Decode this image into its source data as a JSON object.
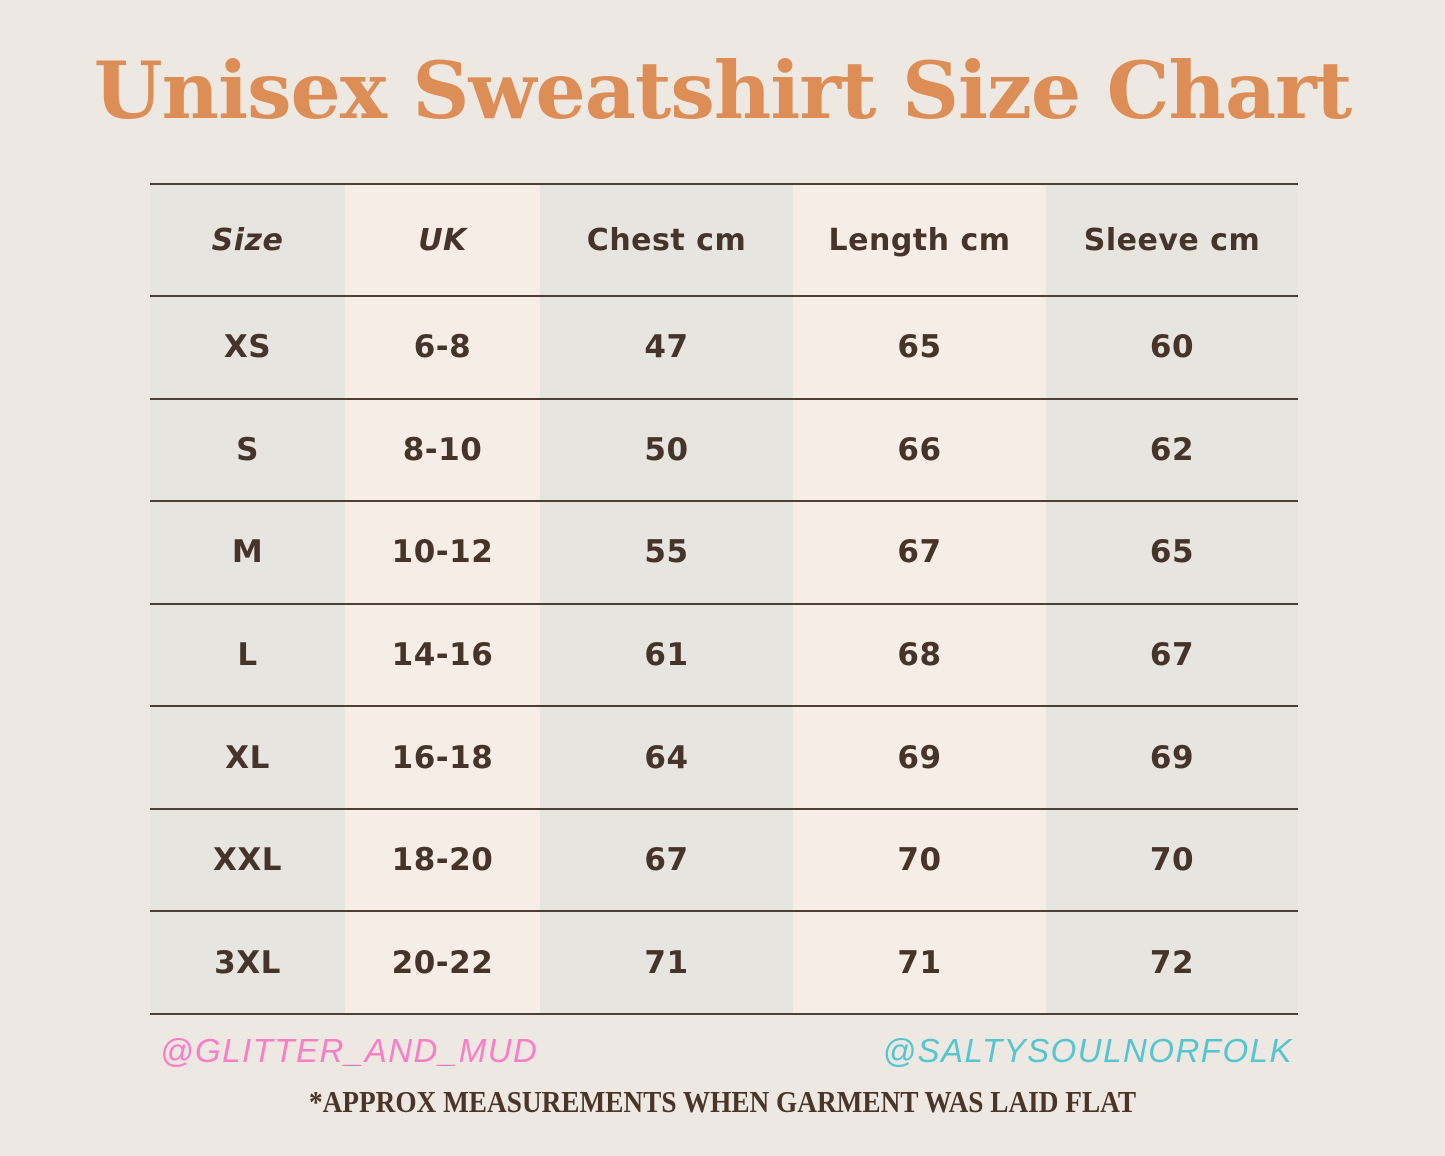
{
  "page": {
    "title": "Unisex Sweatshirt Size Chart",
    "footnote": "*APPROX MEASUREMENTS WHEN GARMENT WAS LAID FLAT"
  },
  "handles": {
    "left": "@GLITTER_AND_MUD",
    "right": "@SALTYSOULNORFOLK"
  },
  "colors": {
    "background": "#EDE8E2",
    "title_orange": "#DD8D56",
    "table_text_brown": "#46342A",
    "rule_brown": "#4E4036",
    "column_gray": "#E6E5E0",
    "column_cream": "#F6EEE6",
    "handle_pink": "#F87EC6",
    "handle_cyan": "#55C6CF"
  },
  "chart_data": {
    "type": "table",
    "title": "Unisex Sweatshirt Size Chart",
    "columns": [
      "Size",
      "UK",
      "Chest cm",
      "Length cm",
      "Sleeve cm"
    ],
    "rows": [
      [
        "XS",
        "6-8",
        "47",
        "65",
        "60"
      ],
      [
        "S",
        "8-10",
        "50",
        "66",
        "62"
      ],
      [
        "M",
        "10-12",
        "55",
        "67",
        "65"
      ],
      [
        "L",
        "14-16",
        "61",
        "68",
        "67"
      ],
      [
        "XL",
        "16-18",
        "64",
        "69",
        "69"
      ],
      [
        "XXL",
        "18-20",
        "67",
        "70",
        "70"
      ],
      [
        "3XL",
        "20-22",
        "71",
        "71",
        "72"
      ]
    ],
    "layout": {
      "grid": "horizontal-rules-only",
      "column_stripes": [
        "gray",
        "cream",
        "gray",
        "cream",
        "gray"
      ],
      "header_italic_columns": [
        "Size",
        "UK"
      ]
    }
  }
}
